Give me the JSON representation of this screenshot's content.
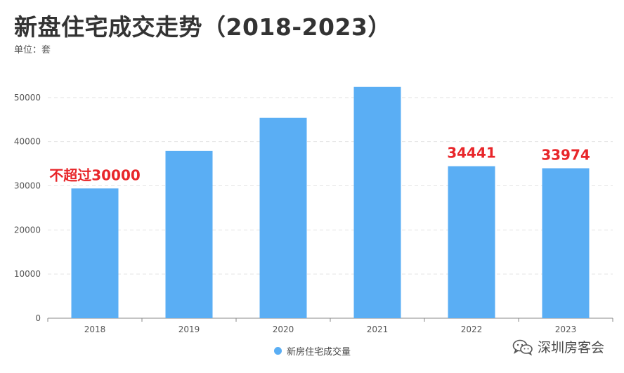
{
  "title": "新盘住宅成交走势（2018-2023）",
  "unit_label": "单位：套",
  "legend_label": "新房住宅成交量",
  "watermark": "深圳房客会",
  "watermark_icon": "wechat-icon",
  "colors": {
    "bar": "#5aaef4",
    "annotation": "#e8262a",
    "grid": "#e3e3e3",
    "axis": "#888888"
  },
  "chart_data": {
    "type": "bar",
    "categories": [
      "2018",
      "2019",
      "2020",
      "2021",
      "2022",
      "2023"
    ],
    "series": [
      {
        "name": "新房住宅成交量",
        "values": [
          29400,
          37900,
          45400,
          52400,
          34441,
          33974
        ]
      }
    ],
    "ylim": [
      0,
      60000
    ],
    "yticks": [
      0,
      10000,
      20000,
      30000,
      40000,
      50000
    ],
    "grid": true,
    "legend_position": "bottom",
    "annotations": [
      {
        "category": "2018",
        "text": "不超过30000"
      },
      {
        "category": "2022",
        "text": "34441"
      },
      {
        "category": "2023",
        "text": "33974"
      }
    ]
  }
}
